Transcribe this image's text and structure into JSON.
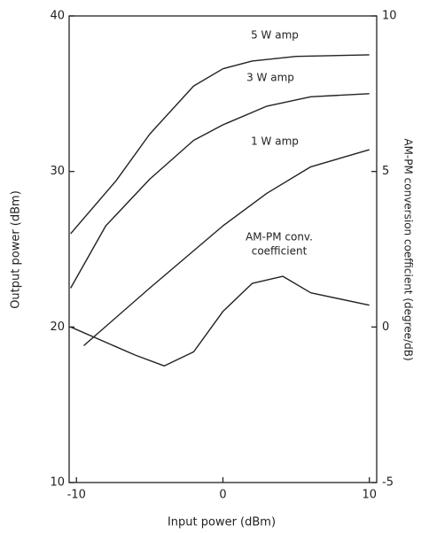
{
  "chart_data": {
    "type": "line",
    "x_label": "Input power (dBm)",
    "y_label": "Output power (dBm)",
    "y2_label": "AM-PM conversion coefficient (degree/dB)",
    "xlim": [
      -10.5,
      10.5
    ],
    "xticks": [
      -10,
      0,
      10
    ],
    "ylim": [
      10,
      40
    ],
    "yticks": [
      10,
      20,
      30,
      40
    ],
    "y2lim": [
      -5,
      10
    ],
    "y2ticks": [
      -5,
      0,
      5,
      10
    ],
    "grid": false,
    "series": [
      {
        "name": "5 W amp",
        "color": "#222222",
        "x": [
          -10.4,
          -7.3,
          -5,
          -2,
          0,
          2,
          5,
          10
        ],
        "values": [
          26,
          29.4,
          32.4,
          35.5,
          36.6,
          37.1,
          37.4,
          37.5
        ]
      },
      {
        "name": "3 W amp",
        "color": "#222222",
        "x": [
          -10.4,
          -8,
          -5,
          -2,
          0,
          3,
          6,
          10
        ],
        "values": [
          22.5,
          26.5,
          29.5,
          32,
          33,
          34.2,
          34.8,
          35
        ]
      },
      {
        "name": "1 W amp",
        "color": "#222222",
        "x": [
          -9.5,
          -5,
          0,
          3,
          6,
          10
        ],
        "values": [
          18.8,
          22.5,
          26.5,
          28.6,
          30.3,
          31.4
        ]
      },
      {
        "color": "#222222",
        "axis": "y2",
        "x": [
          -10.4,
          -6,
          -4,
          -2,
          0,
          2,
          4.1,
          6,
          10
        ],
        "values": [
          0,
          -0.9,
          -1.25,
          -0.8,
          0.5,
          1.4,
          1.63,
          1.1,
          0.7
        ]
      }
    ],
    "annotations": [
      "AM-PM conv.",
      "coefficient"
    ]
  }
}
